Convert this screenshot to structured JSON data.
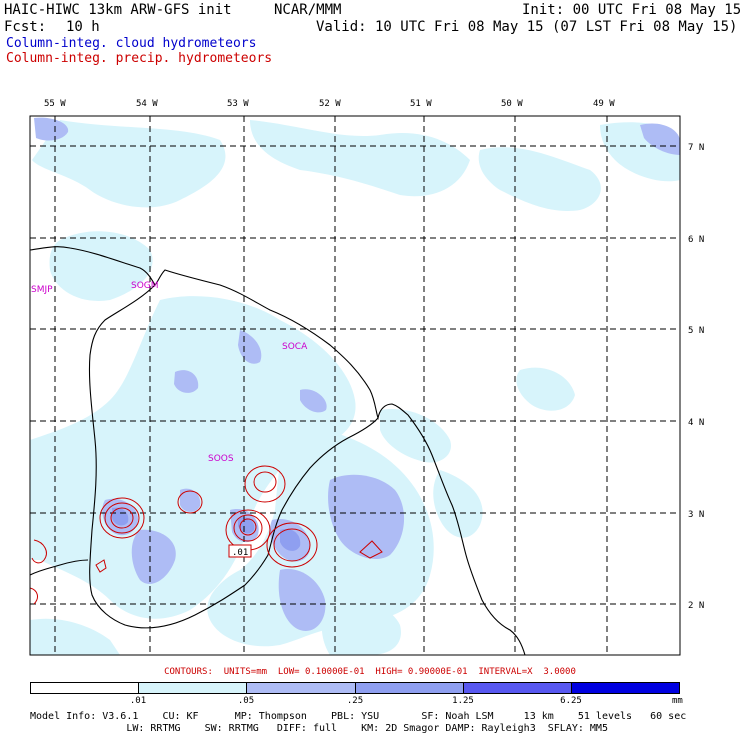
{
  "header": {
    "model_title": "HAIC-HIWC 13km ARW-GFS init",
    "org": "NCAR/MMM",
    "init": "Init: 00 UTC Fri 08 May 15",
    "fcst_label": "Fcst:",
    "fcst_value": "10 h",
    "valid": "Valid: 10 UTC Fri 08 May 15 (07 LST Fri 08 May 15)"
  },
  "fields": {
    "shaded": "Column-integ. cloud hydrometeors",
    "contoured": "Column-integ. precip. hydrometeors"
  },
  "colors": {
    "shaded_title": "#0000cc",
    "contour_title": "#cc0000",
    "station": "#cc00cc",
    "shade_levels": [
      "#ffffff",
      "#d7f4fb",
      "#aebcf5",
      "#8f9ff0",
      "#5858f0",
      "#0000e0"
    ]
  },
  "map": {
    "lon_labels": [
      "55 W",
      "54 W",
      "53 W",
      "52 W",
      "51 W",
      "50 W",
      "49 W"
    ],
    "lat_labels": [
      "7 N",
      "6 N",
      "5 N",
      "4 N",
      "3 N",
      "2 N"
    ],
    "stations": [
      "SMJP",
      "SOGM",
      "SOCA",
      "SOOS"
    ],
    "contour_label": ".01"
  },
  "contour_info": "CONTOURS:  UNITS=mm  LOW= 0.10000E-01  HIGH= 0.90000E-01  INTERVAL=X  3.0000",
  "colorbar": {
    "ticks": [
      ".01",
      ".05",
      ".25",
      "1.25",
      "6.25"
    ],
    "unit": "mm"
  },
  "model_info": {
    "line1": "Model Info: V3.6.1    CU: KF      MP: Thompson    PBL: YSU       SF: Noah LSM     13 km    51 levels   60 sec",
    "line2": "                LW: RRTMG    SW: RRTMG   DIFF: full    KM: 2D Smagor DAMP: Rayleigh3  SFLAY: MM5"
  }
}
